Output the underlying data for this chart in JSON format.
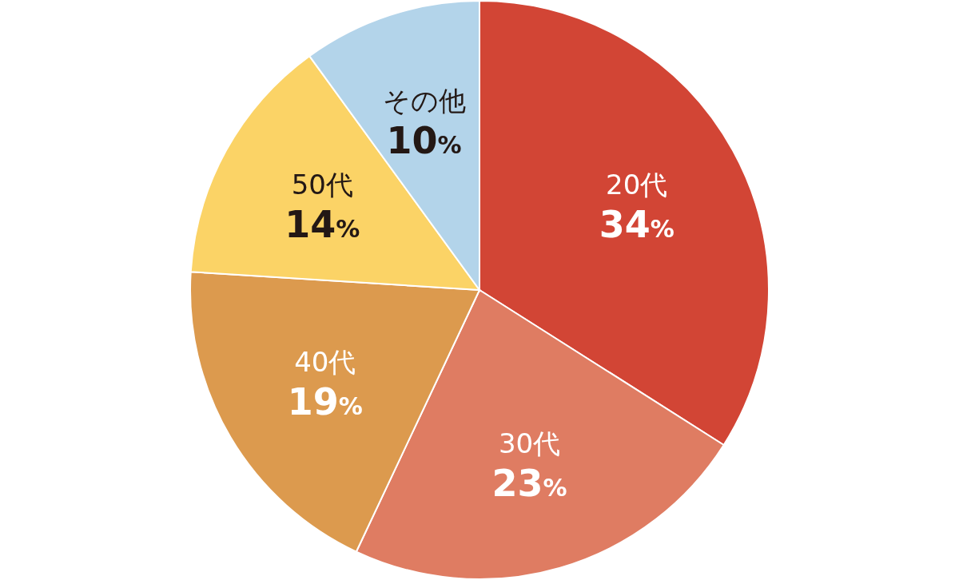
{
  "chart_data": {
    "type": "pie",
    "categories": [
      "20代",
      "30代",
      "40代",
      "50代",
      "その他"
    ],
    "values": [
      34,
      23,
      19,
      14,
      10
    ],
    "colors": [
      "#d24535",
      "#df7c62",
      "#dc9a4e",
      "#fbd366",
      "#b3d4ea"
    ],
    "value_labels": [
      "34%",
      "23%",
      "19%",
      "14%",
      "10%"
    ]
  }
}
